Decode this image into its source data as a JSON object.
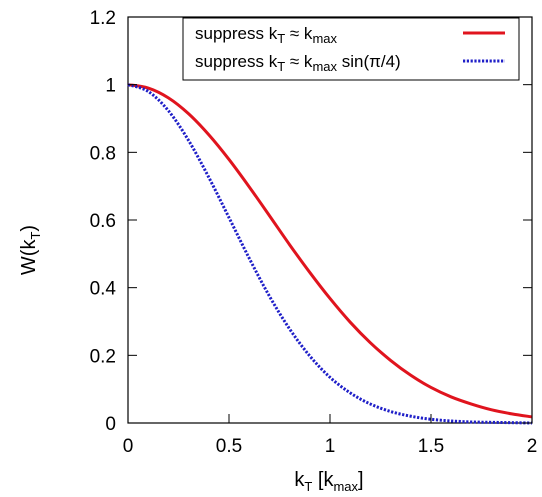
{
  "chart_data": {
    "type": "line",
    "title": "",
    "xlabel": {
      "base": "k",
      "sub": "T",
      "rest": " [k",
      "sub2": "max",
      "end": "]"
    },
    "ylabel": {
      "base": "W(k",
      "sub": "T",
      "end": ")"
    },
    "xlim": [
      0,
      2
    ],
    "ylim": [
      0,
      1.2
    ],
    "xticks": [
      0,
      0.5,
      1,
      1.5,
      2
    ],
    "xtick_labels": [
      "0",
      "0.5",
      "1",
      "1.5",
      "2"
    ],
    "yticks": [
      0,
      0.2,
      0.4,
      0.6,
      0.8,
      1,
      1.2
    ],
    "ytick_labels": [
      "0",
      "0.2",
      "0.4",
      "0.6",
      "0.8",
      "1",
      "1.2"
    ],
    "grid": false,
    "legend_position": "top-right",
    "x": [
      0,
      0.1,
      0.2,
      0.3,
      0.4,
      0.5,
      0.6,
      0.7,
      0.8,
      0.9,
      1.0,
      1.1,
      1.2,
      1.3,
      1.4,
      1.5,
      1.6,
      1.7,
      1.8,
      1.9,
      2.0
    ],
    "series": [
      {
        "name": {
          "pre": "suppress k",
          "sub1": "T",
          "mid": " ≈ k",
          "sub2": "max",
          "post": ""
        },
        "color": "#e0141e",
        "style": "solid",
        "values": [
          1.0,
          0.99,
          0.961,
          0.914,
          0.852,
          0.779,
          0.698,
          0.613,
          0.527,
          0.445,
          0.368,
          0.298,
          0.237,
          0.185,
          0.141,
          0.105,
          0.077,
          0.056,
          0.039,
          0.027,
          0.018
        ]
      },
      {
        "name": {
          "pre": "suppress k",
          "sub1": "T",
          "mid": " ≈ k",
          "sub2": "max",
          "post": " sin(π/4)"
        },
        "color": "#1f1fc8",
        "style": "dotted",
        "values": [
          1.0,
          0.98,
          0.923,
          0.835,
          0.726,
          0.607,
          0.487,
          0.375,
          0.278,
          0.198,
          0.135,
          0.089,
          0.056,
          0.034,
          0.02,
          0.011,
          0.006,
          0.003,
          0.002,
          0.001,
          0.0
        ]
      }
    ]
  }
}
